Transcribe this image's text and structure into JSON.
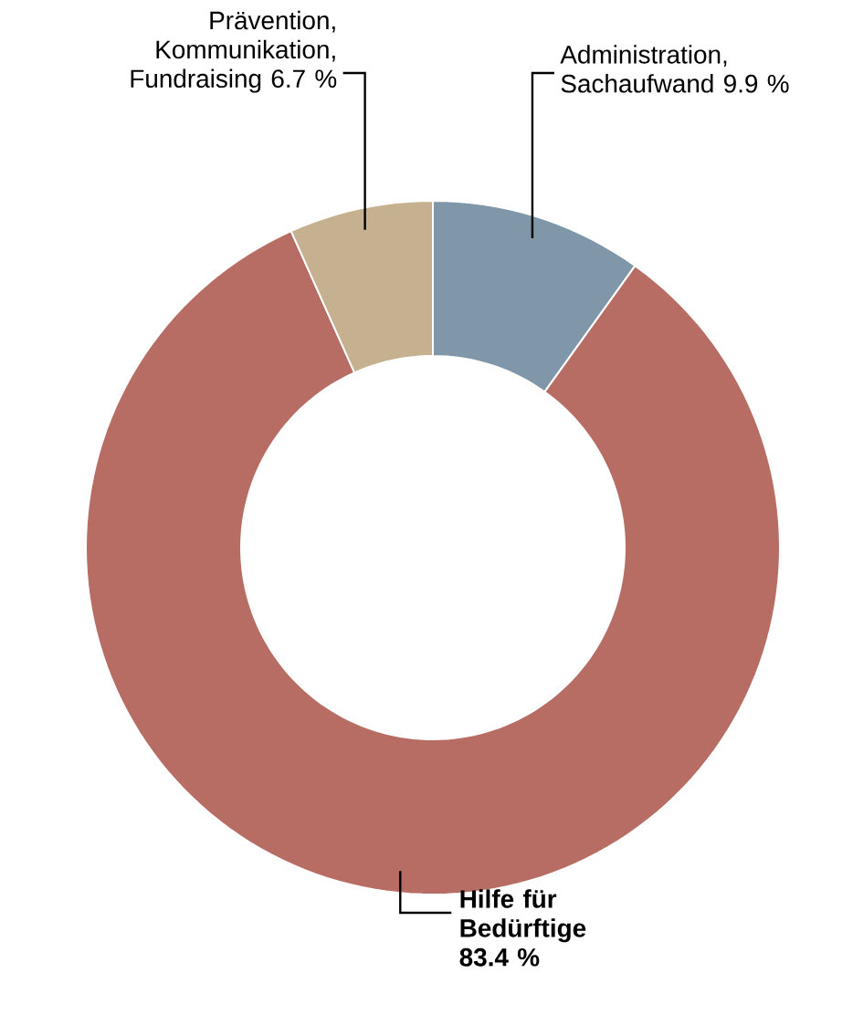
{
  "chart_data": {
    "type": "donut",
    "categories": [
      "Administration, Sachaufwand",
      "Hilfe für Bedürftige",
      "Prävention, Kommunikation, Fundraising"
    ],
    "values": [
      9.9,
      83.4,
      6.7
    ],
    "value_labels": [
      "9.9 %",
      "83.4 %",
      "6.7 %"
    ],
    "colors": [
      "#7f97a8",
      "#b86d64",
      "#c5b08f"
    ]
  }
}
